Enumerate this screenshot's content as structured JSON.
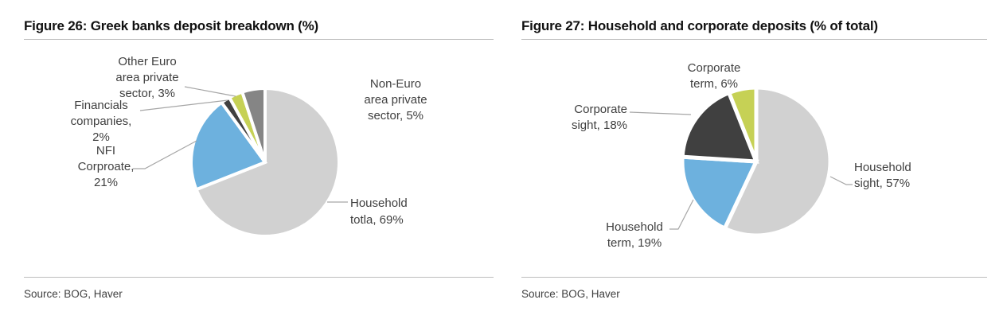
{
  "figures": [
    {
      "title": "Figure 26: Greek banks deposit breakdown (%)",
      "source": "Source: BOG, Haver",
      "callouts": {
        "other_euro": {
          "lines": [
            "Other Euro",
            "area private",
            "sector, 3%"
          ]
        },
        "financials": {
          "lines": [
            "Financials",
            "companies,",
            "2%"
          ]
        },
        "nfi": {
          "lines": [
            "NFI",
            "Corproate,",
            "21%"
          ]
        },
        "non_euro": {
          "lines": [
            "Non-Euro",
            "area private",
            "sector, 5%"
          ]
        },
        "household_total": {
          "lines": [
            "Household",
            "totla, 69%"
          ]
        }
      }
    },
    {
      "title": "Figure 27: Household and corporate deposits (% of total)",
      "source": "Source: BOG, Haver",
      "callouts": {
        "corporate_term": {
          "lines": [
            "Corporate",
            "term, 6%"
          ]
        },
        "corporate_sight": {
          "lines": [
            "Corporate",
            "sight, 18%"
          ]
        },
        "household_term": {
          "lines": [
            "Household",
            "term, 19%"
          ]
        },
        "household_sight": {
          "lines": [
            "Household",
            "sight, 57%"
          ]
        }
      }
    }
  ],
  "chart_data": [
    {
      "type": "pie",
      "title": "Figure 26: Greek banks deposit breakdown (%)",
      "start_angle_deg": 0,
      "direction": "clockwise",
      "legend": "none",
      "slices": [
        {
          "label": "Household totla",
          "value": 69,
          "color": "#d1d1d1"
        },
        {
          "label": "NFI Corproate",
          "value": 21,
          "color": "#6db1de"
        },
        {
          "label": "Financials companies",
          "value": 2,
          "color": "#404040"
        },
        {
          "label": "Other Euro area private sector",
          "value": 3,
          "color": "#c6d155"
        },
        {
          "label": "Non-Euro area private sector",
          "value": 5,
          "color": "#858585"
        }
      ],
      "source": "Source: BOG, Haver"
    },
    {
      "type": "pie",
      "title": "Figure 27: Household and corporate deposits (% of total)",
      "start_angle_deg": 0,
      "direction": "clockwise",
      "legend": "none",
      "slices": [
        {
          "label": "Household sight",
          "value": 57,
          "color": "#d1d1d1"
        },
        {
          "label": "Household term",
          "value": 19,
          "color": "#6db1de"
        },
        {
          "label": "Corporate sight",
          "value": 18,
          "color": "#404040"
        },
        {
          "label": "Corporate term",
          "value": 6,
          "color": "#c6d155"
        }
      ],
      "source": "Source: BOG, Haver"
    }
  ],
  "ui_colors": {
    "leader_line": "#a6a6a6",
    "divider": "#bdbdbd",
    "label_text": "#3f3f3f",
    "title_text": "#111111"
  }
}
